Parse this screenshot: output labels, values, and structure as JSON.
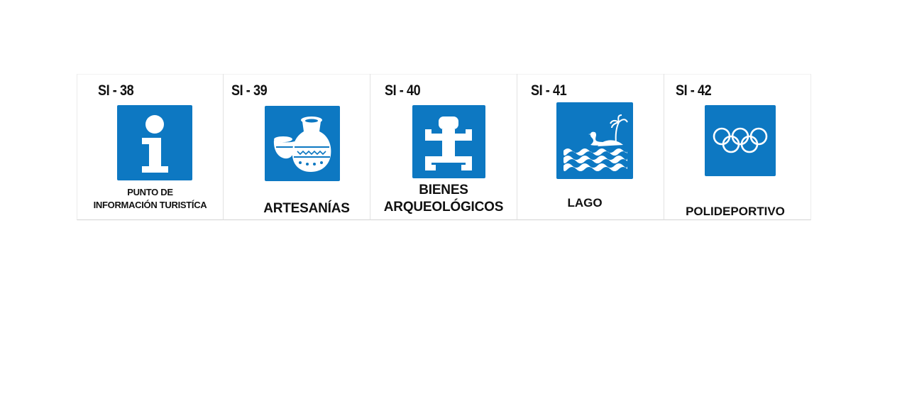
{
  "signs": [
    {
      "code": "SI - 38",
      "caption_lines": [
        "PUNTO DE",
        "INFORMACIÓN TURISTÍCA"
      ],
      "icon": "information-icon"
    },
    {
      "code": "SI - 39",
      "caption_lines": [
        "ARTESANÍAS"
      ],
      "icon": "pottery-icon"
    },
    {
      "code": "SI - 40",
      "caption_lines": [
        "BIENES",
        "ARQUEOLÓGICOS"
      ],
      "icon": "archaeological-figure-icon"
    },
    {
      "code": "SI - 41",
      "caption_lines": [
        "LAGO"
      ],
      "icon": "lake-swan-icon"
    },
    {
      "code": "SI - 42",
      "caption_lines": [
        "POLIDEPORTIVO"
      ],
      "icon": "olympic-rings-icon"
    }
  ],
  "colors": {
    "sign_blue": "#0d78c2",
    "text": "#111111"
  }
}
